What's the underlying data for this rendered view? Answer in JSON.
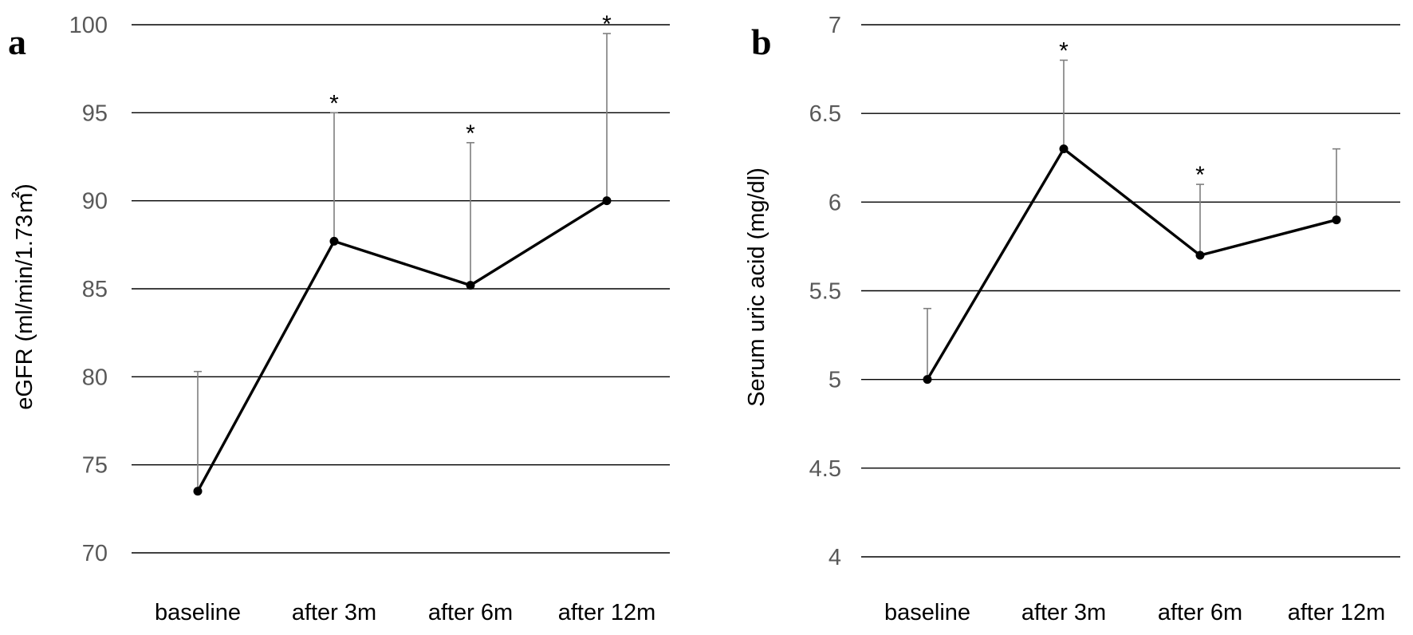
{
  "chart_data": [
    {
      "panel": "a",
      "type": "line",
      "categories": [
        "baseline",
        "after 3m",
        "after 6m",
        "after 12m"
      ],
      "values": [
        73.5,
        87.7,
        85.2,
        90.0
      ],
      "error_upper": [
        80.3,
        95.0,
        93.3,
        99.5
      ],
      "significant": [
        false,
        true,
        true,
        true
      ],
      "significance_marker": "*",
      "ylabel": "eGFR (ml/min/1.73㎡)",
      "ylim": [
        70,
        100
      ],
      "yticks": [
        70,
        75,
        80,
        85,
        90,
        95,
        100
      ],
      "ytick_labels": [
        "70",
        "75",
        "80",
        "85",
        "90",
        "95",
        "100"
      ],
      "grid": true,
      "line_color": "#000000",
      "error_color": "#7f7f7f"
    },
    {
      "panel": "b",
      "type": "line",
      "categories": [
        "baseline",
        "after 3m",
        "after 6m",
        "after 12m"
      ],
      "values": [
        5.0,
        6.3,
        5.7,
        5.9
      ],
      "error_upper": [
        5.4,
        6.8,
        6.1,
        6.3
      ],
      "significant": [
        false,
        true,
        true,
        false
      ],
      "significance_marker": "*",
      "ylabel": "Serum uric acid (mg/dl)",
      "ylim": [
        4,
        7
      ],
      "yticks": [
        4,
        4.5,
        5,
        5.5,
        6,
        6.5,
        7
      ],
      "ytick_labels": [
        "4",
        "4.5",
        "5",
        "5.5",
        "6",
        "6.5",
        "7"
      ],
      "grid": true,
      "line_color": "#000000",
      "error_color": "#7f7f7f"
    }
  ]
}
